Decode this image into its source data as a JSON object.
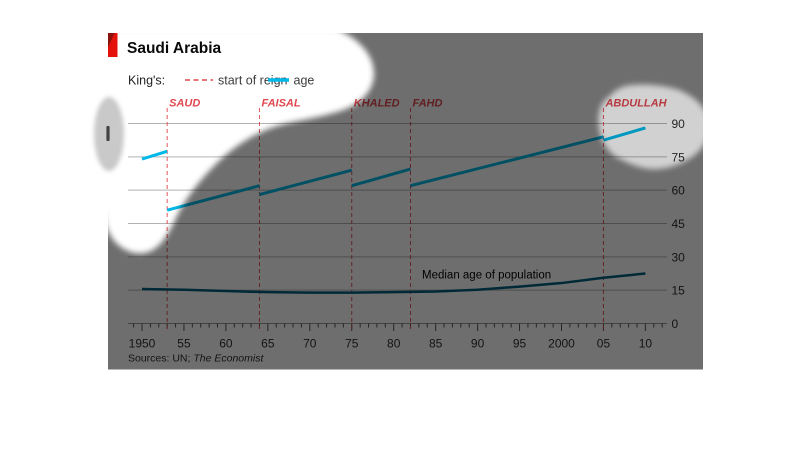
{
  "header": {
    "title": "Saudi Arabia",
    "brand_tab_color": "#e3120b",
    "brand_tab_fold_color": "#8a120c"
  },
  "legend": {
    "prefix": "King's:",
    "items": [
      {
        "label": "start of reign",
        "swatch": "dashed-red-line"
      },
      {
        "label": "age",
        "swatch": "solid-cyan-line"
      }
    ]
  },
  "annotations": {
    "median_label": "Median age of population"
  },
  "sources": {
    "prefix": "Sources: UN; ",
    "italic": "The Economist"
  },
  "colors": {
    "age_line": "#00b9e8",
    "median_line": "#01607f",
    "king_red": "#e0474f",
    "grid": "#b3b3b3",
    "baseline": "#999999",
    "tick": "#555555",
    "axis_text": "#2e2e2e",
    "overlay_dark_alpha": 0.57,
    "overlay_light_alpha": 0.18,
    "smudge_alpha": 0.21
  },
  "chart_data": {
    "type": "line",
    "title": "Saudi Arabia",
    "x_axis": {
      "tick_years": [
        1950,
        1955,
        1960,
        1965,
        1970,
        1975,
        1980,
        1985,
        1990,
        1995,
        2000,
        2005,
        2010
      ],
      "tick_labels": [
        "1950",
        "55",
        "60",
        "65",
        "70",
        "75",
        "80",
        "85",
        "90",
        "95",
        "2000",
        "05",
        "10"
      ],
      "minor_tick_interval_years": 1,
      "range": [
        1948.5,
        2012.5
      ]
    },
    "y_axis": {
      "ticks": [
        0,
        15,
        30,
        45,
        60,
        75,
        90
      ],
      "range": [
        0,
        90
      ],
      "side": "right",
      "grid": true
    },
    "kings_reign_start": [
      {
        "name": "SAUD",
        "year": 1953
      },
      {
        "name": "FAISAL",
        "year": 1964
      },
      {
        "name": "KHALED",
        "year": 1975
      },
      {
        "name": "FAHD",
        "year": 1982
      },
      {
        "name": "ABDULLAH",
        "year": 2005
      }
    ],
    "age_segments": [
      {
        "king": "",
        "points": [
          [
            1950,
            74
          ],
          [
            1953,
            77.5
          ]
        ]
      },
      {
        "king": "SAUD",
        "points": [
          [
            1953,
            51
          ],
          [
            1964,
            62
          ]
        ]
      },
      {
        "king": "FAISAL",
        "points": [
          [
            1964,
            58
          ],
          [
            1975,
            69
          ]
        ]
      },
      {
        "king": "KHALED",
        "points": [
          [
            1975,
            62
          ],
          [
            1982,
            69.5
          ]
        ]
      },
      {
        "king": "FAHD",
        "points": [
          [
            1982,
            62
          ],
          [
            2005,
            84
          ]
        ]
      },
      {
        "king": "ABDULLAH",
        "points": [
          [
            2005,
            82.5
          ],
          [
            2010,
            88
          ]
        ]
      }
    ],
    "median_age_series": {
      "label": "Median age of population",
      "points": [
        [
          1950,
          15.5
        ],
        [
          1955,
          15.2
        ],
        [
          1960,
          14.6
        ],
        [
          1965,
          14.1
        ],
        [
          1970,
          13.9
        ],
        [
          1975,
          13.9
        ],
        [
          1980,
          14.1
        ],
        [
          1985,
          14.4
        ],
        [
          1990,
          15.2
        ],
        [
          1995,
          16.6
        ],
        [
          2000,
          18.2
        ],
        [
          2005,
          20.6
        ],
        [
          2010,
          22.5
        ]
      ]
    }
  }
}
